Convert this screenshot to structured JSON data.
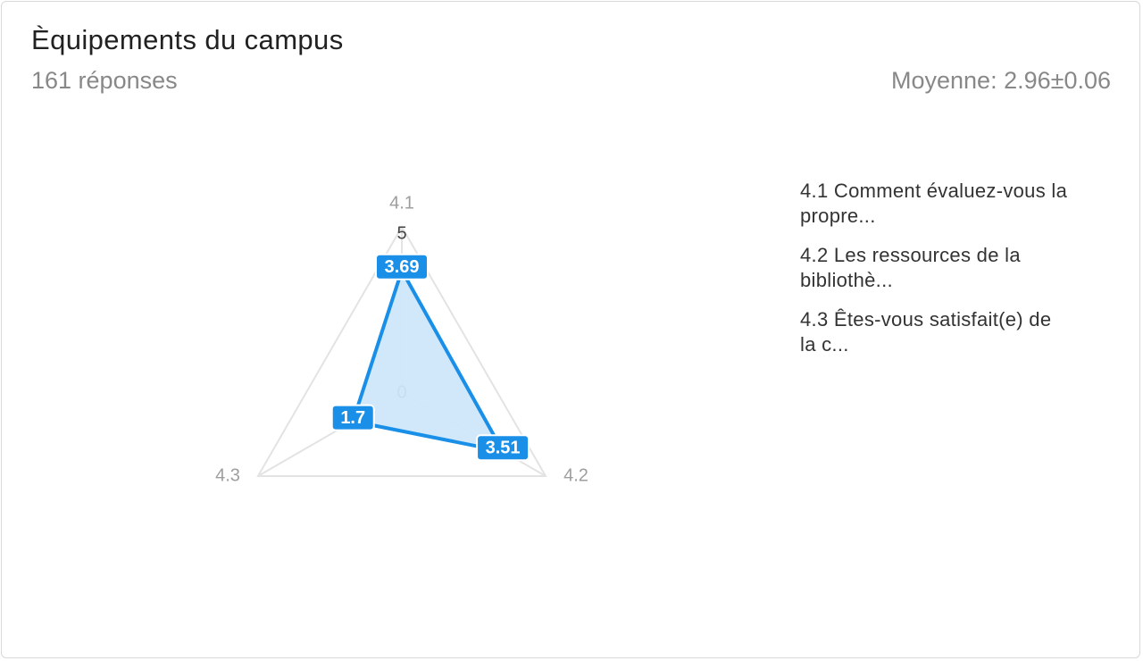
{
  "header": {
    "title": "Èquipements du campus",
    "responses": "161 réponses",
    "mean": "Moyenne: 2.96±0.06"
  },
  "colors": {
    "series": "#1a8fe8",
    "fill": "#cfe7fb",
    "grid": "#e3e3e3"
  },
  "chart_data": {
    "type": "radar",
    "axes": [
      "4.1",
      "4.2",
      "4.3"
    ],
    "range": [
      0,
      5
    ],
    "tick_labels": [
      "0",
      "5"
    ],
    "series": [
      {
        "values": [
          3.69,
          3.51,
          1.7
        ],
        "value_labels": [
          "3.69",
          "3.51",
          "1.7"
        ]
      }
    ],
    "legend": {
      "position": "right",
      "items": [
        "4.1 Comment évaluez-vous la propre...",
        "4.2 Les ressources de la bibliothè...",
        "4.3 Êtes-vous satisfait(e) de la c..."
      ]
    }
  }
}
